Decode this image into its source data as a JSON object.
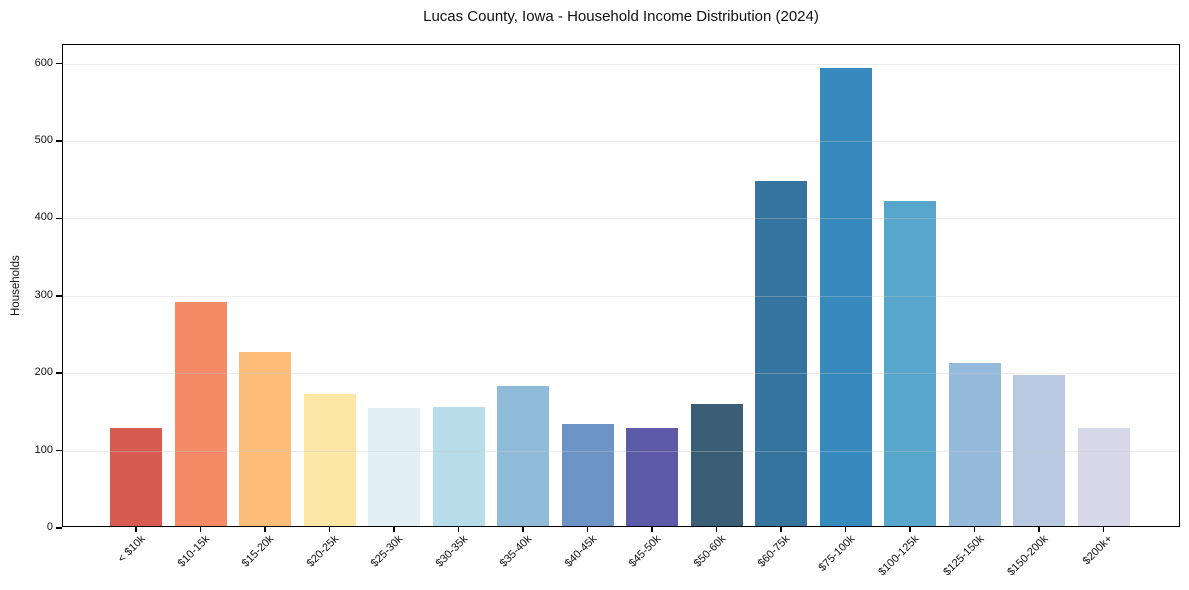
{
  "chart_data": {
    "type": "bar",
    "title": "Lucas County, Iowa - Household Income Distribution (2024)",
    "xlabel": "",
    "ylabel": "Households",
    "categories": [
      "< $10k",
      "$10-15k",
      "$15-20k",
      "$20-25k",
      "$25-30k",
      "$30-35k",
      "$35-40k",
      "$40-45k",
      "$45-50k",
      "$50-60k",
      "$60-75k",
      "$75-100k",
      "$100-125k",
      "$125-150k",
      "$150-200k",
      "$200k+"
    ],
    "values": [
      127,
      290,
      225,
      170,
      152,
      154,
      181,
      132,
      126,
      158,
      446,
      592,
      420,
      210,
      195,
      127
    ],
    "bar_colors": [
      "#d85b51",
      "#f48a66",
      "#fbbd78",
      "#fce7a7",
      "#e2f0f6",
      "#b7dcea",
      "#8fbbd9",
      "#6b93c3",
      "#5d5aa7",
      "#3a5e76",
      "#35749f",
      "#378abd",
      "#58a6cb",
      "#95badb",
      "#b9c9e2",
      "#d8d9e8"
    ],
    "yticks": [
      0,
      100,
      200,
      300,
      400,
      500,
      600
    ],
    "ylim": [
      0,
      624
    ],
    "grid": "horizontal",
    "grid_color": "rgba(200,200,200,0.35)",
    "axis_color": "#000000",
    "background": "#ffffff"
  }
}
